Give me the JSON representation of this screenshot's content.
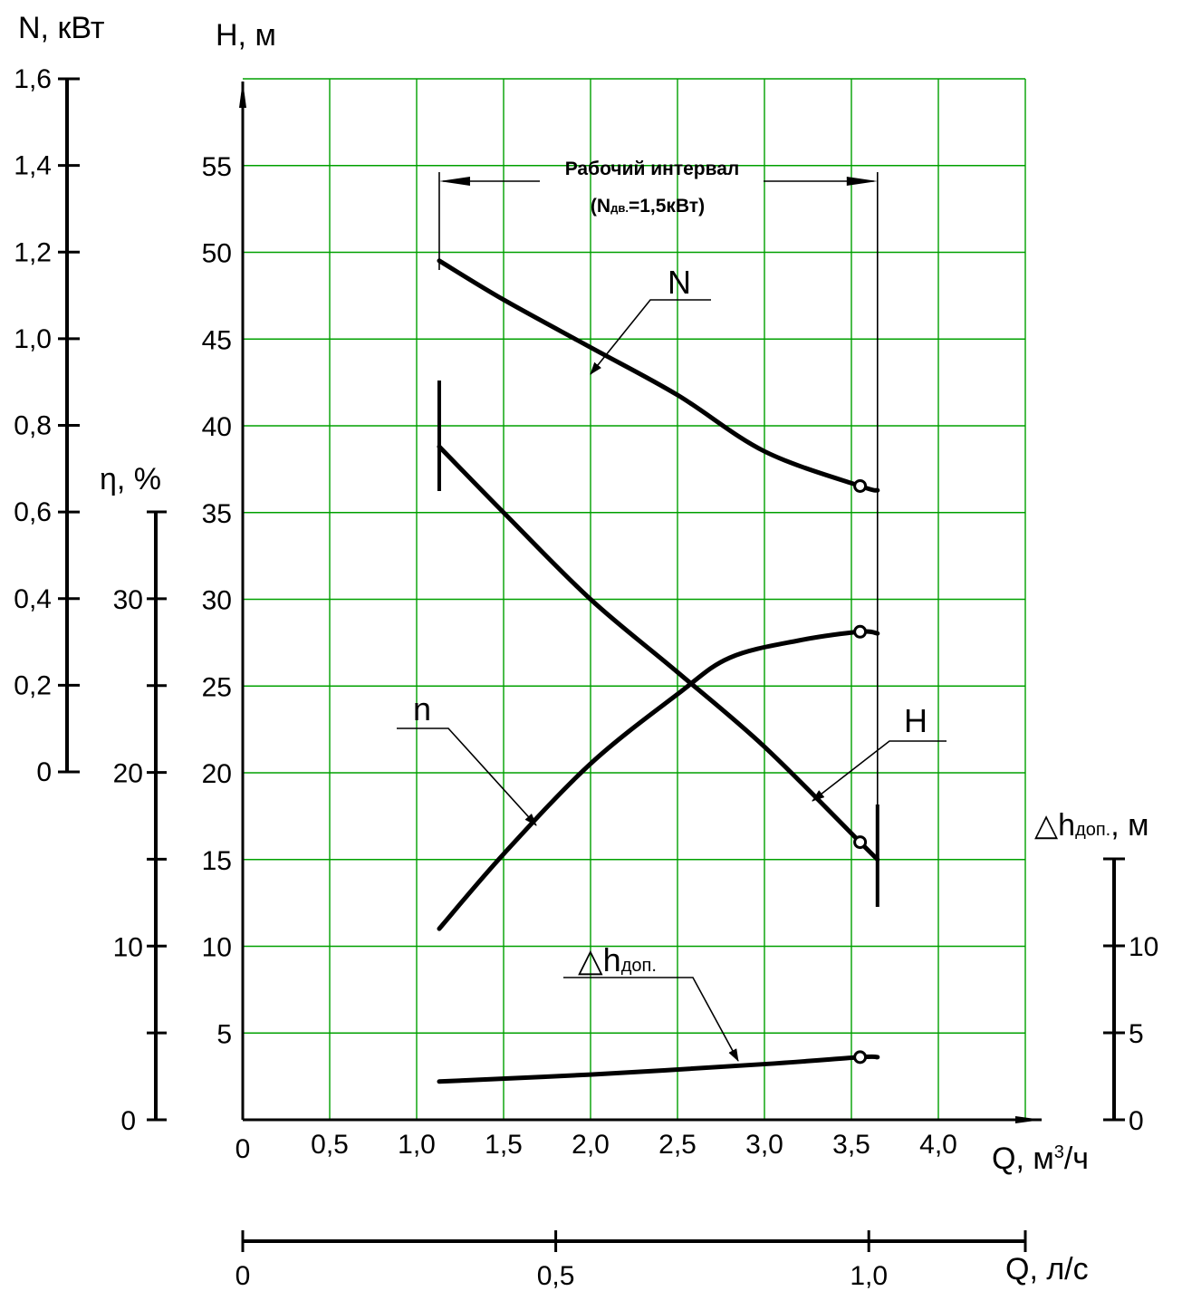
{
  "chart_data": {
    "type": "line",
    "axes": {
      "x_main": {
        "label": "Q, м³/ч",
        "label_main": "Q, м",
        "label_sup": "3",
        "label_tail": "/ч",
        "range": [
          0,
          4.5
        ],
        "ticks": [
          "0",
          "0,5",
          "1,0",
          "1,5",
          "2,0",
          "2,5",
          "3,0",
          "3,5",
          "4,0"
        ]
      },
      "x_secondary": {
        "label": "Q, л/с",
        "range": [
          0,
          1.25
        ],
        "ticks": [
          "0",
          "0,5",
          "1,0"
        ]
      },
      "y_head": {
        "label": "H, м",
        "range": [
          0,
          60
        ],
        "ticks": [
          "5",
          "10",
          "15",
          "20",
          "25",
          "30",
          "35",
          "40",
          "45",
          "50",
          "55"
        ]
      },
      "y_power": {
        "label": "N, кВт",
        "range": [
          0,
          1.6
        ],
        "ticks": [
          "0",
          "0,2",
          "0,4",
          "0,6",
          "0,8",
          "1,0",
          "1,2",
          "1,4",
          "1,6"
        ]
      },
      "y_efficiency": {
        "label": "η, %",
        "range": [
          0,
          35
        ],
        "ticks": [
          "10",
          "20",
          "30"
        ]
      },
      "y_npsh": {
        "label": "△hдоп., м",
        "label_main": "△h",
        "label_sub": "доп.",
        "label_tail": ", м",
        "range": [
          0,
          15
        ],
        "ticks": [
          "0",
          "5",
          "10"
        ]
      },
      "grid": true
    },
    "series": [
      {
        "name": "N",
        "axis": "y_power",
        "points": [
          [
            1.13,
            1.18
          ],
          [
            1.5,
            1.09
          ],
          [
            2.0,
            0.98
          ],
          [
            2.5,
            0.87
          ],
          [
            3.0,
            0.74
          ],
          [
            3.55,
            0.66
          ],
          [
            3.65,
            0.65
          ]
        ]
      },
      {
        "name": "H",
        "axis": "y_head",
        "points": [
          [
            1.13,
            38.8
          ],
          [
            1.5,
            35.0
          ],
          [
            2.0,
            30.0
          ],
          [
            2.5,
            25.8
          ],
          [
            3.0,
            21.5
          ],
          [
            3.55,
            16.0
          ],
          [
            3.65,
            15.0
          ]
        ]
      },
      {
        "name": "n",
        "axis": "y_efficiency",
        "points": [
          [
            1.13,
            11.0
          ],
          [
            1.5,
            15.3
          ],
          [
            2.0,
            20.5
          ],
          [
            2.5,
            24.5
          ],
          [
            2.8,
            26.6
          ],
          [
            3.2,
            27.6
          ],
          [
            3.55,
            28.1
          ],
          [
            3.65,
            28.0
          ]
        ]
      },
      {
        "name": "△hдоп.",
        "name_main": "△h",
        "name_sub": "доп.",
        "axis": "y_npsh",
        "points": [
          [
            1.13,
            2.2
          ],
          [
            2.0,
            2.6
          ],
          [
            3.0,
            3.2
          ],
          [
            3.55,
            3.6
          ],
          [
            3.65,
            3.6
          ]
        ]
      }
    ],
    "operating_interval": {
      "title": "Рабочий интервал",
      "note": "(Nдв.=1,5кВт)",
      "note_main": "(N",
      "note_sub": "дв.",
      "note_tail": "=1,5кВт)",
      "from": 1.13,
      "to": 3.65
    },
    "colors": {
      "grid": "#00a000",
      "curve": "#000000"
    }
  }
}
